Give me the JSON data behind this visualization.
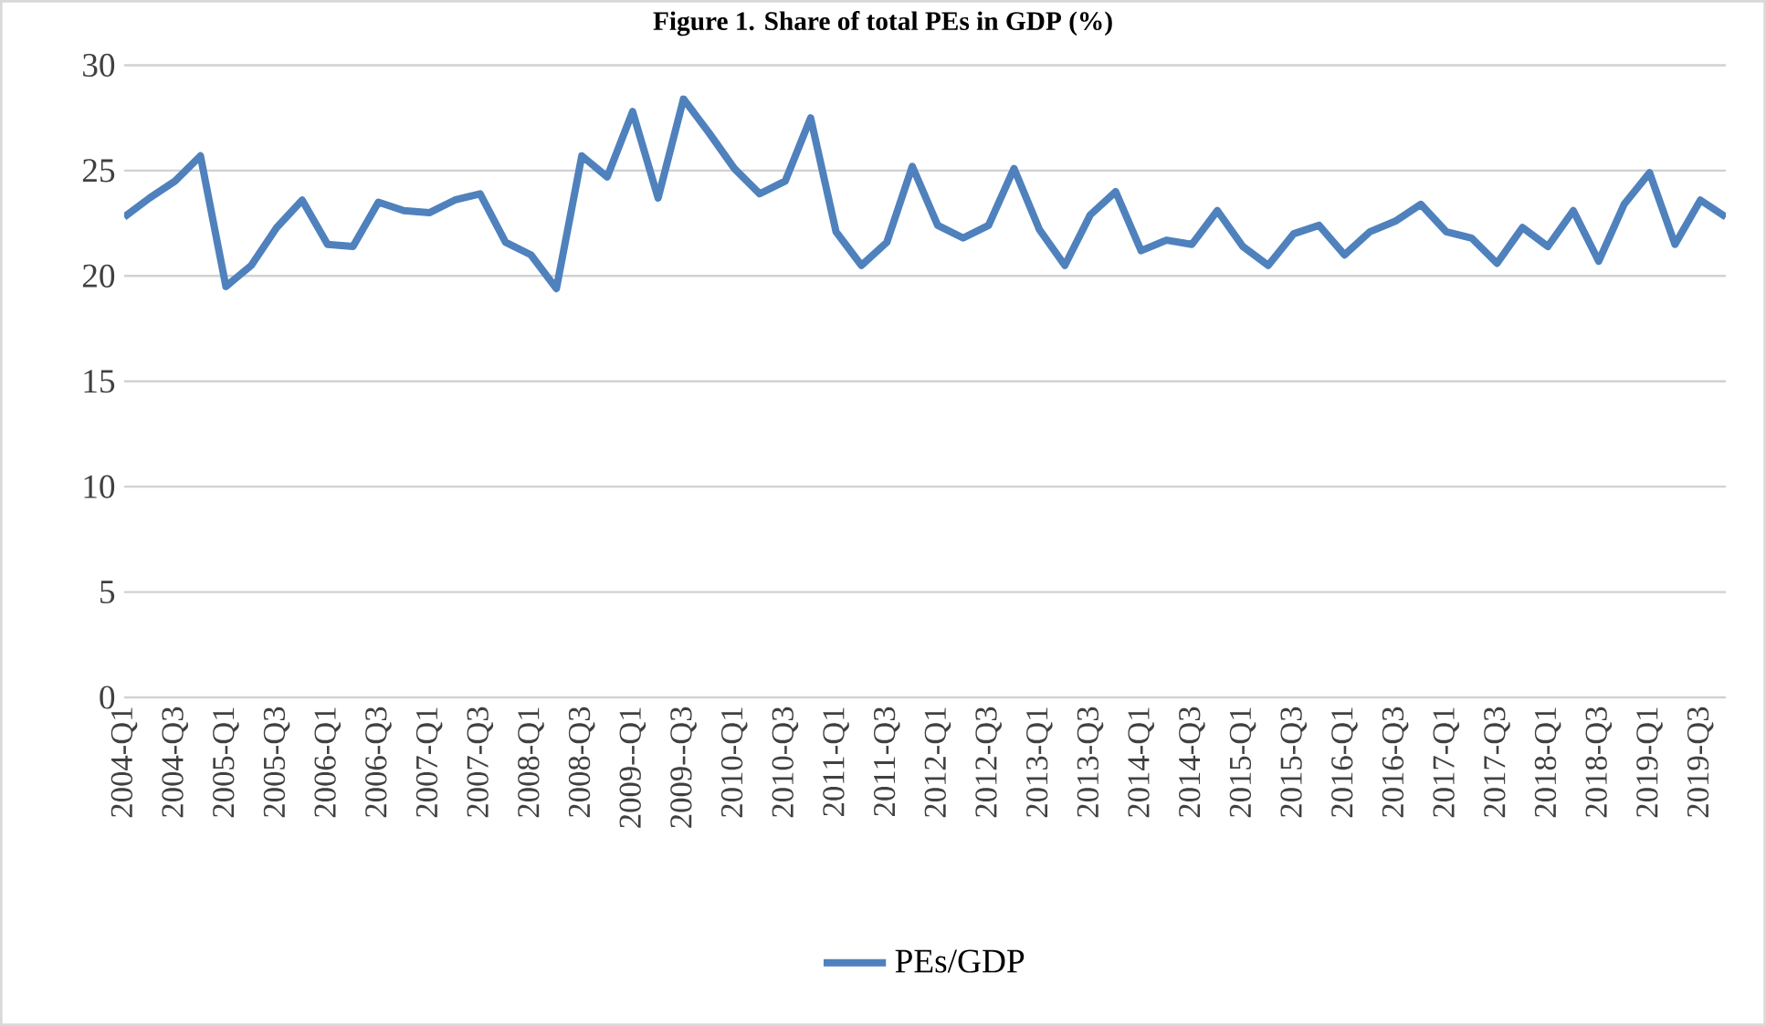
{
  "chart_data": {
    "type": "line",
    "title": "Figure 1. Share of total PEs in GDP (%)",
    "categories": [
      "2004-Q1",
      null,
      "2004-Q3",
      null,
      "2005-Q1",
      null,
      "2005-Q3",
      null,
      "2006-Q1",
      null,
      "2006-Q3",
      null,
      "2007-Q1",
      null,
      "2007-Q3",
      null,
      "2008-Q1",
      null,
      "2008-Q3",
      null,
      "2009--Q1",
      null,
      "2009--Q3",
      null,
      "2010-Q1",
      null,
      "2010-Q3",
      null,
      "2011-Q1",
      null,
      "2011-Q3",
      null,
      "2012-Q1",
      null,
      "2012-Q3",
      null,
      "2013-Q1",
      null,
      "2013-Q3",
      null,
      "2014-Q1",
      null,
      "2014-Q3",
      null,
      "2015-Q1",
      null,
      "2015-Q3",
      null,
      "2016-Q1",
      null,
      "2016-Q3",
      null,
      "2017-Q1",
      null,
      "2017-Q3",
      null,
      "2018-Q1",
      null,
      "2018-Q3",
      null,
      "2019-Q1",
      null,
      "2019-Q3",
      null
    ],
    "series": [
      {
        "name": "PEs/GDP",
        "color": "#4f81bd",
        "values": [
          22.8,
          23.7,
          24.5,
          25.7,
          19.5,
          20.5,
          22.3,
          23.6,
          21.5,
          21.4,
          23.5,
          23.1,
          23.0,
          23.6,
          23.9,
          21.6,
          21.0,
          19.4,
          25.7,
          24.7,
          27.8,
          23.7,
          28.4,
          26.8,
          25.1,
          23.9,
          24.5,
          27.5,
          22.1,
          20.5,
          21.6,
          25.2,
          22.4,
          21.8,
          22.4,
          25.1,
          22.2,
          20.5,
          22.9,
          24.0,
          21.2,
          21.7,
          21.5,
          23.1,
          21.4,
          20.5,
          22.0,
          22.4,
          21.0,
          22.1,
          22.6,
          23.4,
          22.1,
          21.8,
          20.6,
          22.3,
          21.4,
          23.1,
          20.7,
          23.4,
          24.9,
          21.5,
          23.6,
          22.8
        ]
      }
    ],
    "ylim": [
      0,
      30
    ],
    "yticks": [
      0,
      5,
      10,
      15,
      20,
      25,
      30
    ],
    "grid": "y",
    "legend": "bottom",
    "marker": "none",
    "line_style": "solid"
  }
}
